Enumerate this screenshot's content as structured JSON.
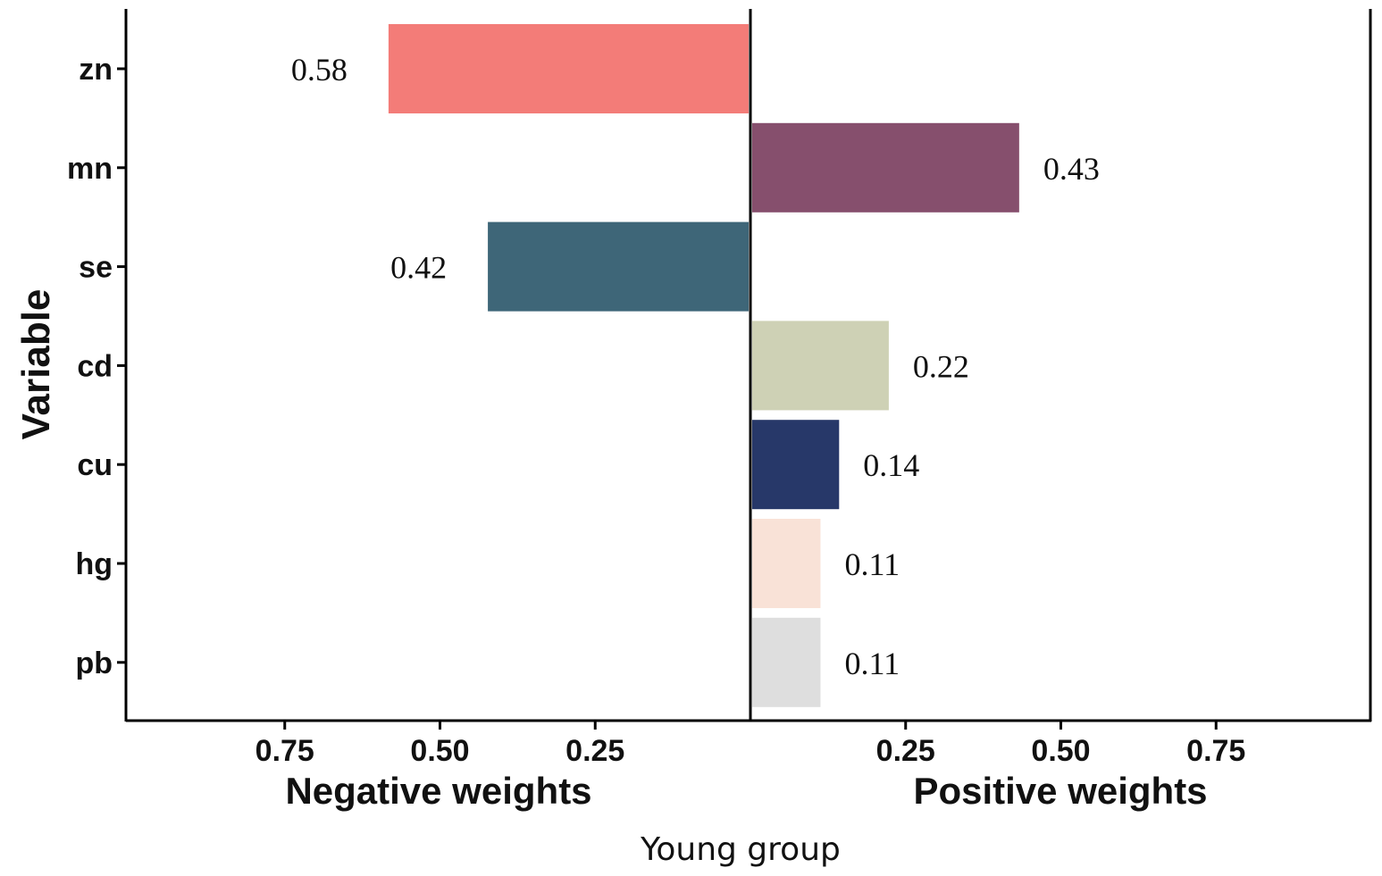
{
  "chart_data": {
    "type": "bar",
    "orientation": "horizontal",
    "ylabel": "Variable",
    "xlabel": "Young group",
    "left_panel": {
      "title": "Negative weights",
      "ticks": [
        "0.75",
        "0.50",
        "0.25"
      ],
      "xlim": [
        1.0,
        0.0
      ]
    },
    "right_panel": {
      "title": "Positive weights",
      "ticks": [
        "0.25",
        "0.50",
        "0.75"
      ],
      "xlim": [
        0.0,
        1.0
      ]
    },
    "categories": [
      "zn",
      "mn",
      "se",
      "cd",
      "cu",
      "hg",
      "pb"
    ],
    "bars": [
      {
        "variable": "zn",
        "side": "negative",
        "value": 0.58,
        "label": "0.58",
        "color": "#F37C78"
      },
      {
        "variable": "mn",
        "side": "positive",
        "value": 0.43,
        "label": "0.43",
        "color": "#864F6D"
      },
      {
        "variable": "se",
        "side": "negative",
        "value": 0.42,
        "label": "0.42",
        "color": "#3E6678"
      },
      {
        "variable": "cd",
        "side": "positive",
        "value": 0.22,
        "label": "0.22",
        "color": "#CED1B5"
      },
      {
        "variable": "cu",
        "side": "positive",
        "value": 0.14,
        "label": "0.14",
        "color": "#273869"
      },
      {
        "variable": "hg",
        "side": "positive",
        "value": 0.11,
        "label": "0.11",
        "color": "#F9E2D7"
      },
      {
        "variable": "pb",
        "side": "positive",
        "value": 0.11,
        "label": "0.11",
        "color": "#DEDEDE"
      }
    ]
  }
}
